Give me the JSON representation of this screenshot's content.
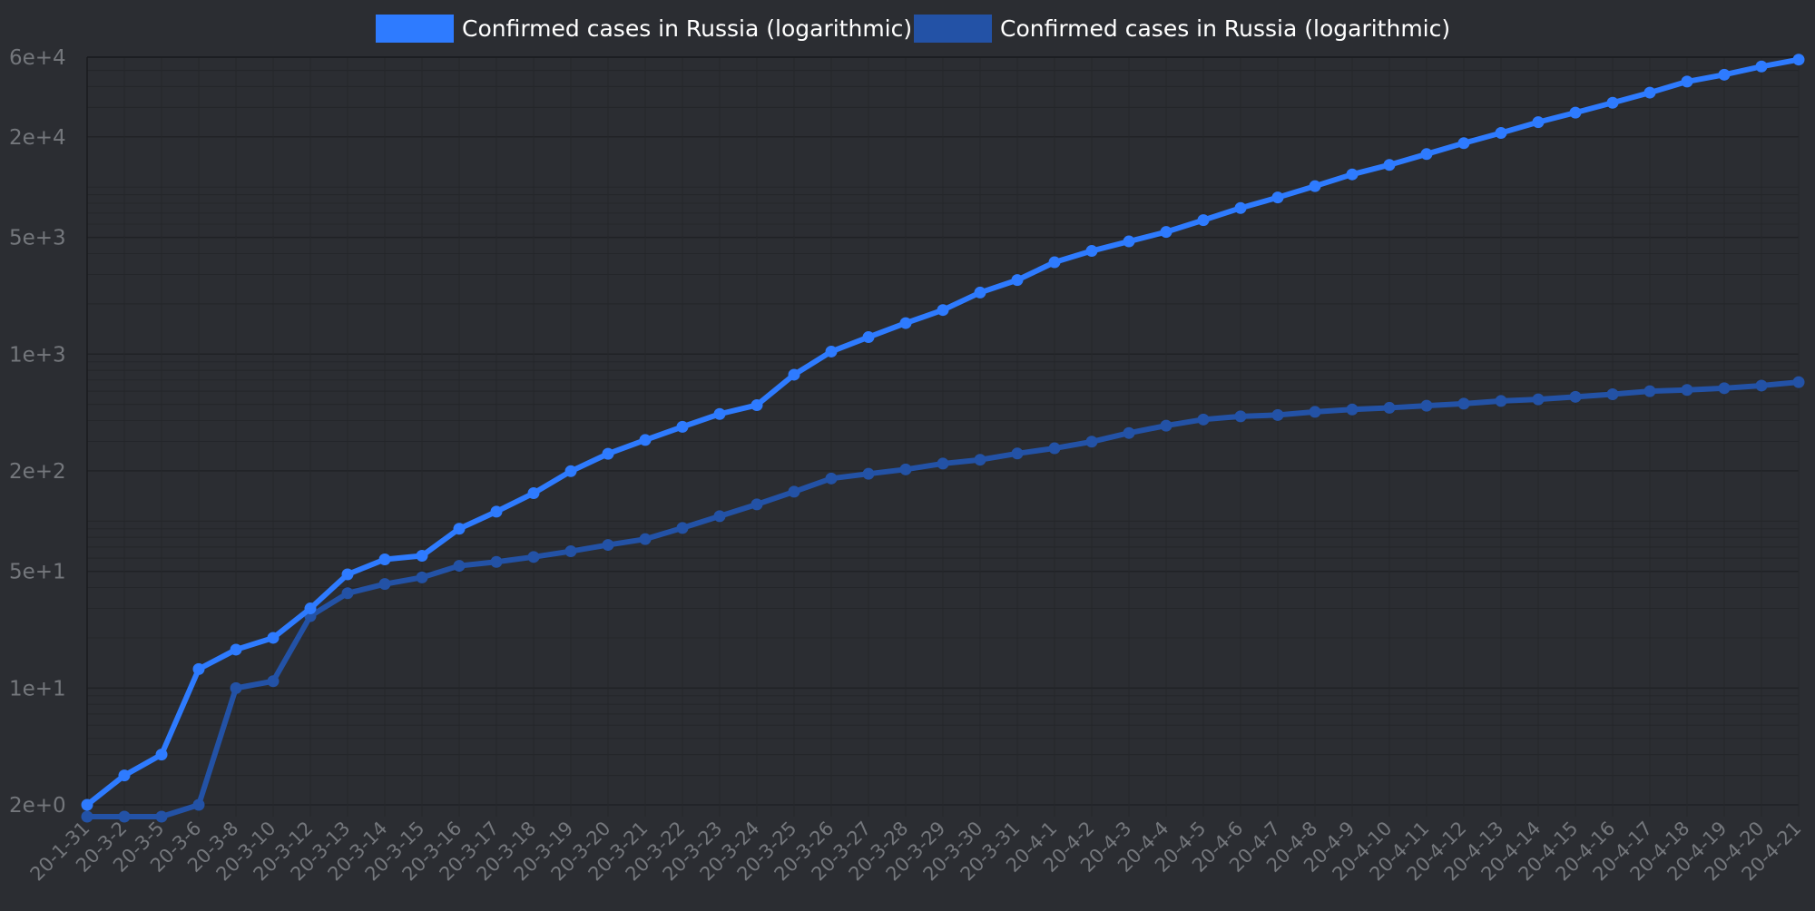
{
  "chart_data": {
    "type": "line",
    "scale_y": "log",
    "grid": true,
    "legend_position": "top-center",
    "y_ticks": [
      {
        "value": 2,
        "label": "2e+0"
      },
      {
        "value": 10,
        "label": "1e+1"
      },
      {
        "value": 50,
        "label": "5e+1"
      },
      {
        "value": 200,
        "label": "2e+2"
      },
      {
        "value": 1000,
        "label": "1e+3"
      },
      {
        "value": 5000,
        "label": "5e+3"
      },
      {
        "value": 20000,
        "label": "2e+4"
      },
      {
        "value": 60000,
        "label": "6e+4"
      }
    ],
    "ylim": [
      1.7,
      60000
    ],
    "categories": [
      "20-1-31",
      "20-3-2",
      "20-3-5",
      "20-3-6",
      "20-3-8",
      "20-3-10",
      "20-3-12",
      "20-3-13",
      "20-3-14",
      "20-3-15",
      "20-3-16",
      "20-3-17",
      "20-3-18",
      "20-3-19",
      "20-3-20",
      "20-3-21",
      "20-3-22",
      "20-3-23",
      "20-3-24",
      "20-3-25",
      "20-3-26",
      "20-3-27",
      "20-3-28",
      "20-3-29",
      "20-3-30",
      "20-3-31",
      "20-4-1",
      "20-4-2",
      "20-4-3",
      "20-4-4",
      "20-4-5",
      "20-4-6",
      "20-4-7",
      "20-4-8",
      "20-4-9",
      "20-4-10",
      "20-4-11",
      "20-4-12",
      "20-4-13",
      "20-4-14",
      "20-4-15",
      "20-4-16",
      "20-4-17",
      "20-4-18",
      "20-4-19",
      "20-4-20",
      "20-4-21"
    ],
    "series": [
      {
        "name": "Confirmed cases in Russia (logarithmic)",
        "color": "#2e7bff",
        "values": [
          2,
          3,
          4,
          13,
          17,
          20,
          30,
          48,
          59,
          62,
          90,
          114,
          147,
          199,
          253,
          306,
          367,
          438,
          495,
          753,
          1036,
          1264,
          1534,
          1836,
          2337,
          2777,
          3548,
          4149,
          4731,
          5389,
          6343,
          7497,
          8672,
          10131,
          11917,
          13584,
          15770,
          18328,
          21102,
          24490,
          27938,
          32008,
          36793,
          42853,
          47121,
          52763,
          57999
        ]
      },
      {
        "name": "Confirmed cases in Russia (logarithmic)",
        "color": "#2352a6",
        "values": [
          1.7,
          1.7,
          1.7,
          2,
          10,
          11,
          27,
          37,
          42,
          46,
          54,
          57,
          61,
          66,
          72,
          78,
          91,
          107,
          126,
          150,
          180,
          192,
          204,
          221,
          233,
          254,
          273,
          299,
          337,
          373,
          406,
          424,
          432,
          451,
          466,
          477,
          491,
          505,
          524,
          536,
          555,
          575,
          600,
          610,
          625,
          648,
          680
        ]
      }
    ]
  }
}
